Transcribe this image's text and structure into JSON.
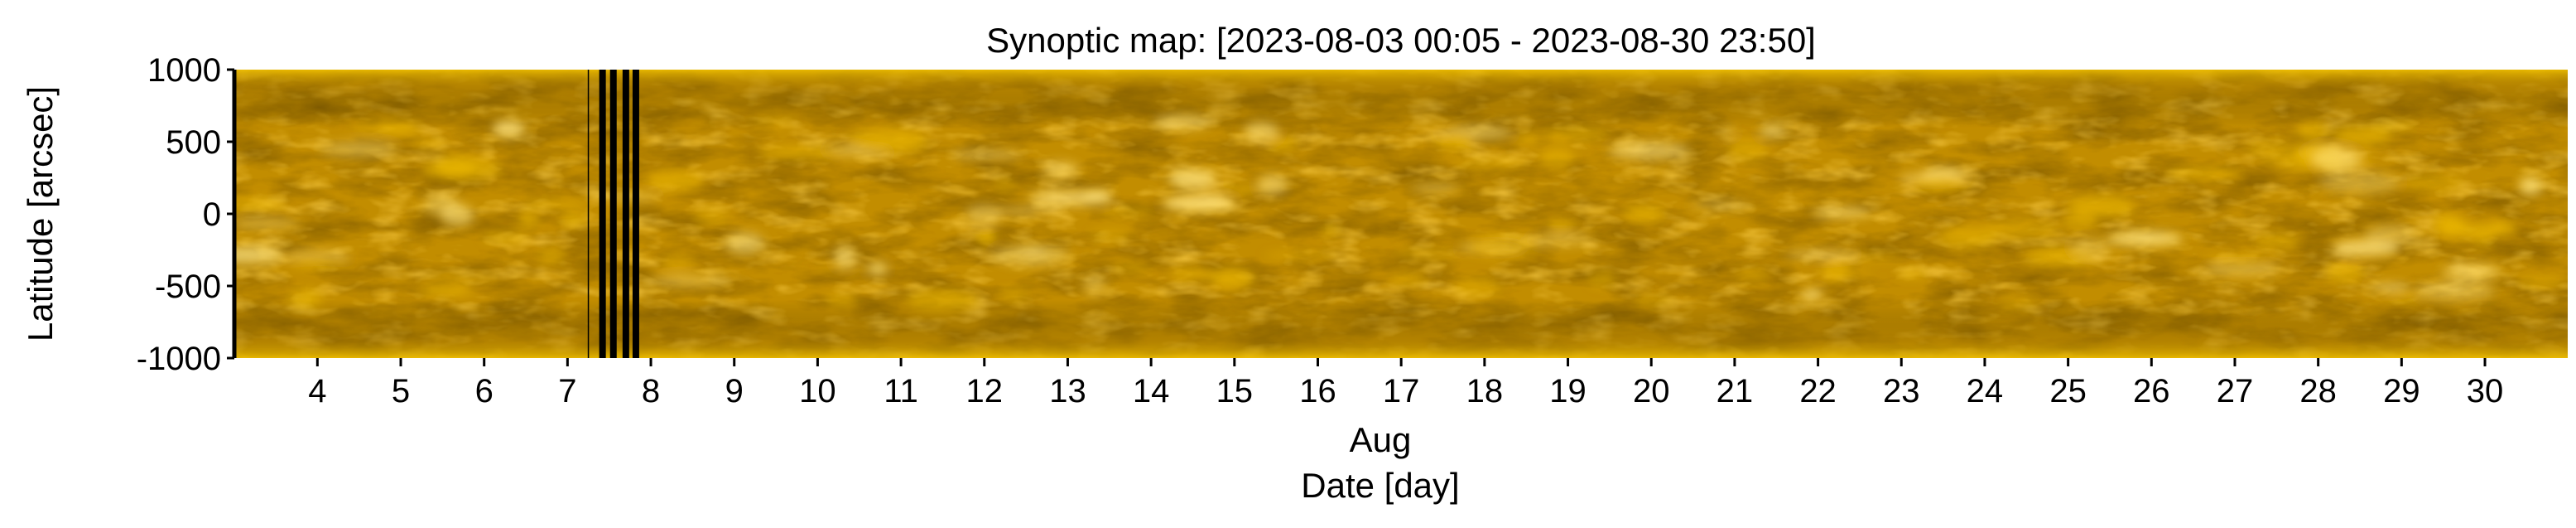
{
  "chart_data": {
    "type": "heatmap",
    "title": "Synoptic map: [2023-08-03 00:05 - 2023-08-30 23:50]",
    "xlabel": "Date [day]",
    "x_sublabel": "Aug",
    "ylabel": "Latitude [arcsec]",
    "x_range": [
      "2023-08-03 00:05",
      "2023-08-30 23:50"
    ],
    "x_ticks": [
      {
        "day": 4,
        "label": "4"
      },
      {
        "day": 5,
        "label": "5"
      },
      {
        "day": 6,
        "label": "6"
      },
      {
        "day": 7,
        "label": "7"
      },
      {
        "day": 8,
        "label": "8"
      },
      {
        "day": 9,
        "label": "9"
      },
      {
        "day": 10,
        "label": "10"
      },
      {
        "day": 11,
        "label": "11"
      },
      {
        "day": 12,
        "label": "12"
      },
      {
        "day": 13,
        "label": "13"
      },
      {
        "day": 14,
        "label": "14"
      },
      {
        "day": 15,
        "label": "15"
      },
      {
        "day": 16,
        "label": "16"
      },
      {
        "day": 17,
        "label": "17"
      },
      {
        "day": 18,
        "label": "18"
      },
      {
        "day": 19,
        "label": "19"
      },
      {
        "day": 20,
        "label": "20"
      },
      {
        "day": 21,
        "label": "21"
      },
      {
        "day": 22,
        "label": "22"
      },
      {
        "day": 23,
        "label": "23"
      },
      {
        "day": 24,
        "label": "24"
      },
      {
        "day": 25,
        "label": "25"
      },
      {
        "day": 26,
        "label": "26"
      },
      {
        "day": 27,
        "label": "27"
      },
      {
        "day": 28,
        "label": "28"
      },
      {
        "day": 29,
        "label": "29"
      },
      {
        "day": 30,
        "label": "30"
      }
    ],
    "y_ticks": [
      {
        "value": 1000,
        "label": "1000"
      },
      {
        "value": 500,
        "label": "500"
      },
      {
        "value": 0,
        "label": "0"
      },
      {
        "value": -500,
        "label": "-500"
      },
      {
        "value": -1000,
        "label": "-1000"
      }
    ],
    "ylim": [
      -1000,
      1000
    ],
    "data_gaps_days": [
      7.42,
      7.55,
      7.7,
      7.82
    ],
    "colormap": [
      "#3a2800",
      "#8a6200",
      "#c08b00",
      "#e8b400",
      "#ffe27a"
    ],
    "base_color": "#c28d00"
  }
}
